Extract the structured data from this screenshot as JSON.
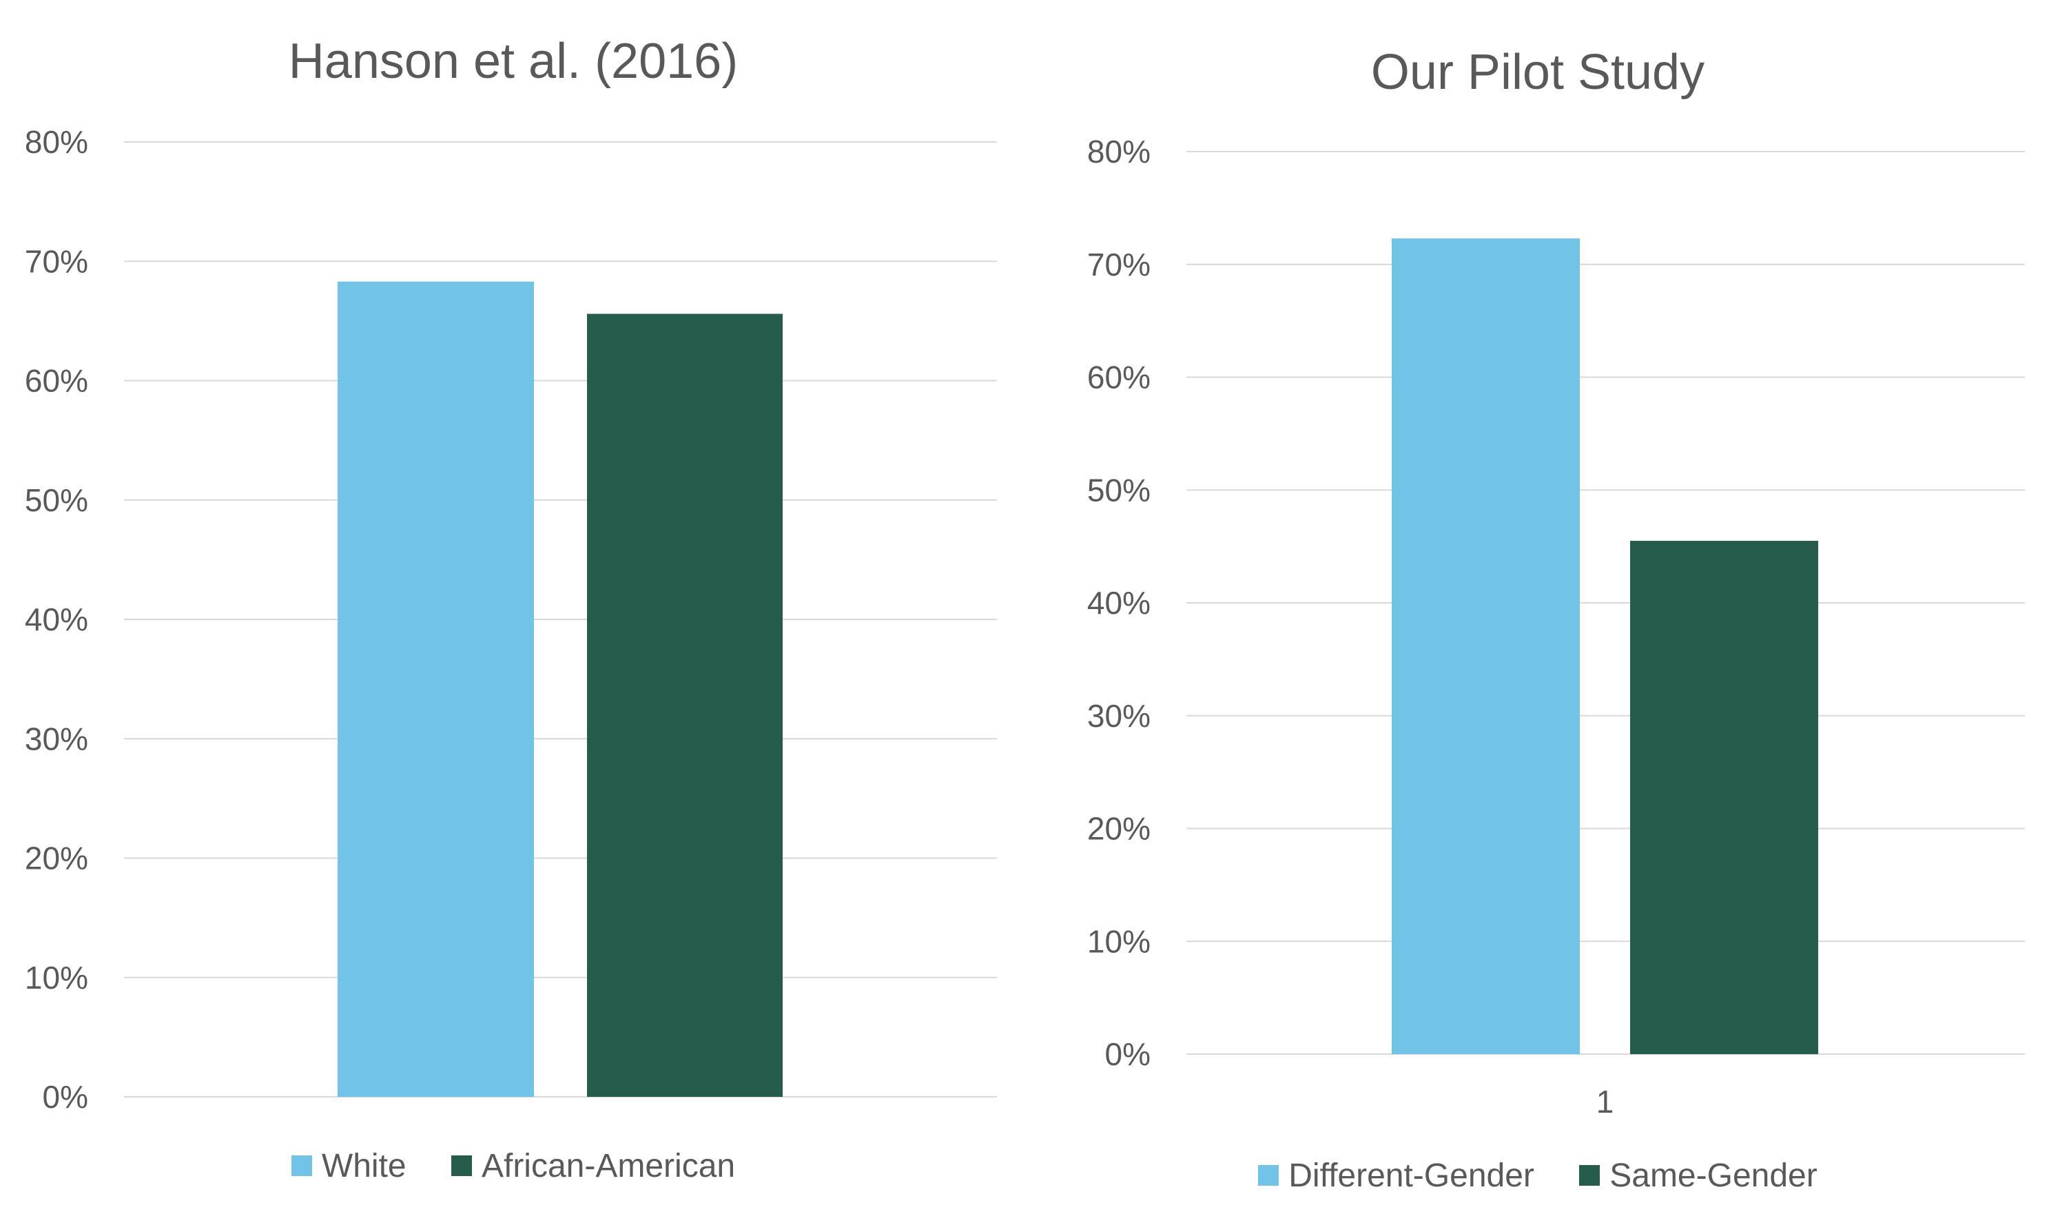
{
  "colors": {
    "series1": "#71C4E8",
    "series2": "#265C4C",
    "grid": "#D9D9D9",
    "text": "#595959"
  },
  "chart_data": [
    {
      "type": "bar",
      "title": "Hanson et al. (2016)",
      "categories": [
        ""
      ],
      "series": [
        {
          "name": "White",
          "values": [
            0.683
          ]
        },
        {
          "name": "African-American",
          "values": [
            0.656
          ]
        }
      ],
      "ylim": [
        0,
        0.8
      ],
      "yticks": [
        0,
        0.1,
        0.2,
        0.3,
        0.4,
        0.5,
        0.6,
        0.7,
        0.8
      ],
      "ytick_labels": [
        "0%",
        "10%",
        "20%",
        "30%",
        "40%",
        "50%",
        "60%",
        "70%",
        "80%"
      ],
      "grid": true,
      "legend": "bottom"
    },
    {
      "type": "bar",
      "title": "Our Pilot Study",
      "categories": [
        "1"
      ],
      "series": [
        {
          "name": "Different-Gender",
          "values": [
            0.723
          ]
        },
        {
          "name": "Same-Gender",
          "values": [
            0.455
          ]
        }
      ],
      "ylim": [
        0,
        0.8
      ],
      "yticks": [
        0,
        0.1,
        0.2,
        0.3,
        0.4,
        0.5,
        0.6,
        0.7,
        0.8
      ],
      "ytick_labels": [
        "0%",
        "10%",
        "20%",
        "30%",
        "40%",
        "50%",
        "60%",
        "70%",
        "80%"
      ],
      "grid": true,
      "legend": "bottom"
    }
  ]
}
